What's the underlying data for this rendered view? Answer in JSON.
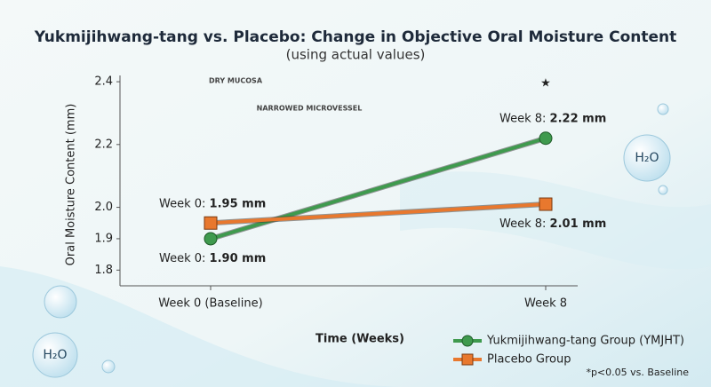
{
  "chart_data": {
    "type": "line",
    "title": "Yukmijihwang-tang vs. Placebo: Change in Objective Oral Moisture Content",
    "subtitle": "(using actual values)",
    "x_label": "Time (Weeks)",
    "y_label": "Oral Moisture Content (mm)",
    "categories": [
      "Week 0 (Baseline)",
      "Week 8"
    ],
    "label_prefixes": [
      "Week 0:",
      "Week 8:"
    ],
    "series": [
      {
        "name": "Yukmijihwang-tang Group (YMJHT)",
        "color": "#3f9a4e",
        "marker": "circle",
        "values": [
          1.9,
          2.22
        ],
        "value_labels": [
          "1.90 mm",
          "2.22 mm"
        ]
      },
      {
        "name": "Placebo Group",
        "color": "#e8782e",
        "marker": "square",
        "values": [
          1.95,
          2.01
        ],
        "value_labels": [
          "1.95 mm",
          "2.01 mm"
        ]
      }
    ],
    "ylim": [
      1.75,
      2.42
    ],
    "yticks": [
      {
        "value": 1.8,
        "label": "1.8"
      },
      {
        "value": 1.9,
        "label": "1.9"
      },
      {
        "value": 2.0,
        "label": "2.0"
      },
      {
        "value": 2.2,
        "label": "2.2"
      },
      {
        "value": 2.4,
        "label": "2.4"
      }
    ],
    "significance_marker": "★",
    "footnote": "*p<0.05 vs. Baseline",
    "decorations": [
      "DRY MUCOSA",
      "NARROWED MICROVESSEL",
      "H₂O"
    ],
    "legend": "bottom-right"
  }
}
